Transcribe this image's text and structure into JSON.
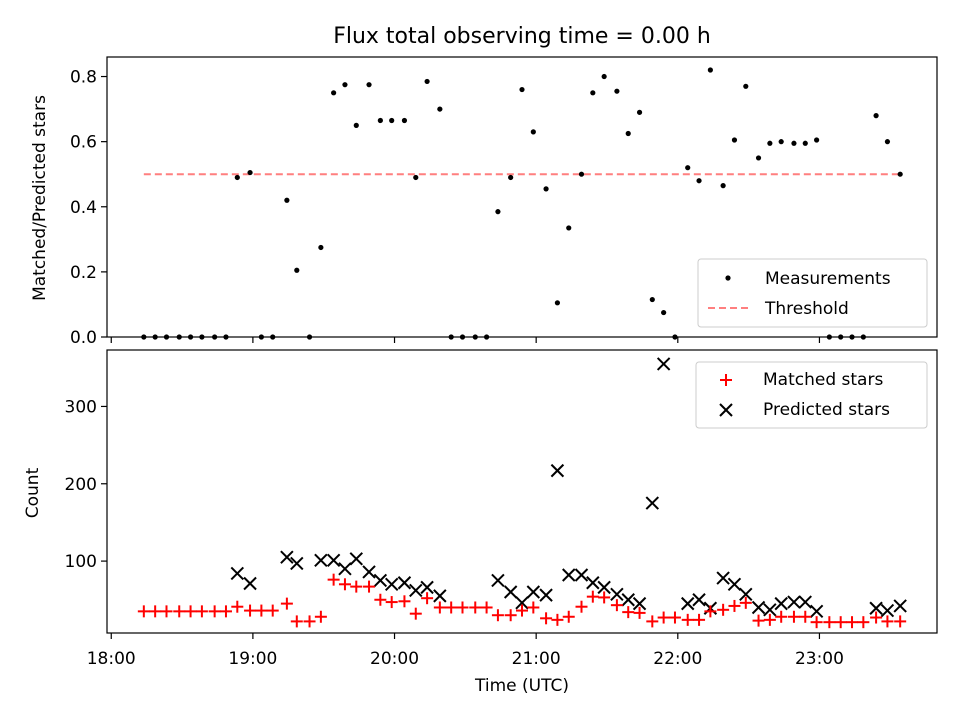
{
  "chart_data": [
    {
      "type": "scatter",
      "title": "Flux total observing time = 0.00 h",
      "xlabel": "",
      "ylabel": "Matched/Predicted stars",
      "xlim": [
        17.97,
        23.83
      ],
      "ylim": [
        0,
        0.86
      ],
      "yticks": [
        0.0,
        0.2,
        0.4,
        0.6,
        0.8
      ],
      "ytick_labels": [
        "0.0",
        "0.2",
        "0.4",
        "0.6",
        "0.8"
      ],
      "xticks": [
        18,
        19,
        20,
        21,
        22,
        23
      ],
      "grid": false,
      "legend_position": "bottom-right",
      "series": [
        {
          "name": "Measurements",
          "marker": "dot",
          "color": "#000000",
          "points": [
            [
              18.23,
              0.0
            ],
            [
              18.31,
              0.0
            ],
            [
              18.39,
              0.0
            ],
            [
              18.48,
              0.0
            ],
            [
              18.56,
              0.0
            ],
            [
              18.64,
              0.0
            ],
            [
              18.73,
              0.0
            ],
            [
              18.81,
              0.0
            ],
            [
              18.89,
              0.49
            ],
            [
              18.98,
              0.505
            ],
            [
              19.06,
              0.0
            ],
            [
              19.14,
              0.0
            ],
            [
              19.24,
              0.42
            ],
            [
              19.31,
              0.205
            ],
            [
              19.4,
              0.0
            ],
            [
              19.48,
              0.275
            ],
            [
              19.57,
              0.75
            ],
            [
              19.65,
              0.775
            ],
            [
              19.73,
              0.65
            ],
            [
              19.82,
              0.775
            ],
            [
              19.9,
              0.665
            ],
            [
              19.98,
              0.665
            ],
            [
              20.07,
              0.665
            ],
            [
              20.15,
              0.49
            ],
            [
              20.23,
              0.785
            ],
            [
              20.32,
              0.7
            ],
            [
              20.4,
              0.0
            ],
            [
              20.48,
              0.0
            ],
            [
              20.57,
              0.0
            ],
            [
              20.65,
              0.0
            ],
            [
              20.73,
              0.385
            ],
            [
              20.82,
              0.49
            ],
            [
              20.9,
              0.76
            ],
            [
              20.98,
              0.63
            ],
            [
              21.07,
              0.455
            ],
            [
              21.15,
              0.105
            ],
            [
              21.23,
              0.335
            ],
            [
              21.32,
              0.5
            ],
            [
              21.4,
              0.75
            ],
            [
              21.48,
              0.8
            ],
            [
              21.57,
              0.755
            ],
            [
              21.65,
              0.625
            ],
            [
              21.73,
              0.69
            ],
            [
              21.82,
              0.115
            ],
            [
              21.9,
              0.075
            ],
            [
              21.98,
              0.0
            ],
            [
              22.07,
              0.52
            ],
            [
              22.15,
              0.48
            ],
            [
              22.23,
              0.82
            ],
            [
              22.32,
              0.465
            ],
            [
              22.4,
              0.605
            ],
            [
              22.48,
              0.77
            ],
            [
              22.57,
              0.55
            ],
            [
              22.65,
              0.595
            ],
            [
              22.73,
              0.6
            ],
            [
              22.82,
              0.595
            ],
            [
              22.9,
              0.595
            ],
            [
              22.98,
              0.605
            ],
            [
              23.07,
              0.0
            ],
            [
              23.15,
              0.0
            ],
            [
              23.23,
              0.0
            ],
            [
              23.31,
              0.0
            ],
            [
              23.4,
              0.68
            ],
            [
              23.48,
              0.6
            ],
            [
              23.57,
              0.5
            ]
          ]
        },
        {
          "name": "Threshold",
          "line": "dashed",
          "color": "#ff7f7f",
          "x": [
            18.23,
            23.57
          ],
          "y": [
            0.5,
            0.5
          ]
        }
      ]
    },
    {
      "type": "scatter",
      "title": "",
      "xlabel": "Time (UTC)",
      "ylabel": "Count",
      "xlim": [
        17.97,
        23.83
      ],
      "ylim": [
        7,
        373
      ],
      "yticks": [
        100,
        200,
        300
      ],
      "ytick_labels": [
        "100",
        "200",
        "300"
      ],
      "xticks": [
        18,
        19,
        20,
        21,
        22,
        23
      ],
      "xtick_labels": [
        "18:00",
        "19:00",
        "20:00",
        "21:00",
        "22:00",
        "23:00"
      ],
      "grid": false,
      "legend_position": "top-right",
      "series": [
        {
          "name": "Matched stars",
          "marker": "plus",
          "color": "#ff0000",
          "points": [
            [
              18.23,
              35
            ],
            [
              18.31,
              35
            ],
            [
              18.39,
              35
            ],
            [
              18.48,
              35
            ],
            [
              18.56,
              35
            ],
            [
              18.64,
              35
            ],
            [
              18.73,
              35
            ],
            [
              18.81,
              35
            ],
            [
              18.89,
              41
            ],
            [
              18.98,
              36
            ],
            [
              19.06,
              36
            ],
            [
              19.14,
              36
            ],
            [
              19.24,
              45
            ],
            [
              19.31,
              22
            ],
            [
              19.4,
              22
            ],
            [
              19.48,
              28
            ],
            [
              19.57,
              76
            ],
            [
              19.65,
              70
            ],
            [
              19.73,
              67
            ],
            [
              19.82,
              67
            ],
            [
              19.9,
              50
            ],
            [
              19.98,
              47
            ],
            [
              20.07,
              48
            ],
            [
              20.15,
              32
            ],
            [
              20.23,
              52
            ],
            [
              20.32,
              40
            ],
            [
              20.4,
              40
            ],
            [
              20.48,
              40
            ],
            [
              20.57,
              40
            ],
            [
              20.65,
              40
            ],
            [
              20.73,
              30
            ],
            [
              20.82,
              30
            ],
            [
              20.9,
              36
            ],
            [
              20.98,
              40
            ],
            [
              21.07,
              26
            ],
            [
              21.15,
              24
            ],
            [
              21.23,
              28
            ],
            [
              21.32,
              41
            ],
            [
              21.4,
              54
            ],
            [
              21.48,
              53
            ],
            [
              21.57,
              43
            ],
            [
              21.65,
              34
            ],
            [
              21.73,
              33
            ],
            [
              21.82,
              22
            ],
            [
              21.9,
              27
            ],
            [
              21.98,
              27
            ],
            [
              22.07,
              24
            ],
            [
              22.15,
              24
            ],
            [
              22.23,
              35
            ],
            [
              22.32,
              37
            ],
            [
              22.4,
              42
            ],
            [
              22.48,
              46
            ],
            [
              22.57,
              23
            ],
            [
              22.65,
              24
            ],
            [
              22.73,
              28
            ],
            [
              22.82,
              28
            ],
            [
              22.9,
              28
            ],
            [
              22.98,
              21
            ],
            [
              23.07,
              21
            ],
            [
              23.15,
              21
            ],
            [
              23.23,
              21
            ],
            [
              23.31,
              21
            ],
            [
              23.4,
              27
            ],
            [
              23.48,
              22
            ],
            [
              23.57,
              22
            ]
          ]
        },
        {
          "name": "Predicted stars",
          "marker": "x",
          "color": "#000000",
          "points": [
            [
              18.89,
              84
            ],
            [
              18.98,
              71
            ],
            [
              19.24,
              105
            ],
            [
              19.31,
              97
            ],
            [
              19.48,
              101
            ],
            [
              19.57,
              101
            ],
            [
              19.65,
              90
            ],
            [
              19.73,
              103
            ],
            [
              19.82,
              86
            ],
            [
              19.9,
              75
            ],
            [
              19.98,
              70
            ],
            [
              20.07,
              72
            ],
            [
              20.15,
              62
            ],
            [
              20.23,
              66
            ],
            [
              20.32,
              55
            ],
            [
              20.73,
              75
            ],
            [
              20.82,
              60
            ],
            [
              20.9,
              46
            ],
            [
              20.98,
              60
            ],
            [
              21.07,
              56
            ],
            [
              21.15,
              217
            ],
            [
              21.23,
              82
            ],
            [
              21.32,
              82
            ],
            [
              21.4,
              72
            ],
            [
              21.48,
              66
            ],
            [
              21.57,
              57
            ],
            [
              21.65,
              50
            ],
            [
              21.73,
              45
            ],
            [
              21.82,
              175
            ],
            [
              21.9,
              355
            ],
            [
              22.07,
              45
            ],
            [
              22.15,
              50
            ],
            [
              22.23,
              39
            ],
            [
              22.32,
              78
            ],
            [
              22.4,
              70
            ],
            [
              22.48,
              57
            ],
            [
              22.57,
              40
            ],
            [
              22.65,
              37
            ],
            [
              22.73,
              45
            ],
            [
              22.82,
              47
            ],
            [
              22.9,
              47
            ],
            [
              22.98,
              35
            ],
            [
              23.4,
              39
            ],
            [
              23.48,
              36
            ],
            [
              23.57,
              42
            ]
          ]
        }
      ]
    }
  ]
}
